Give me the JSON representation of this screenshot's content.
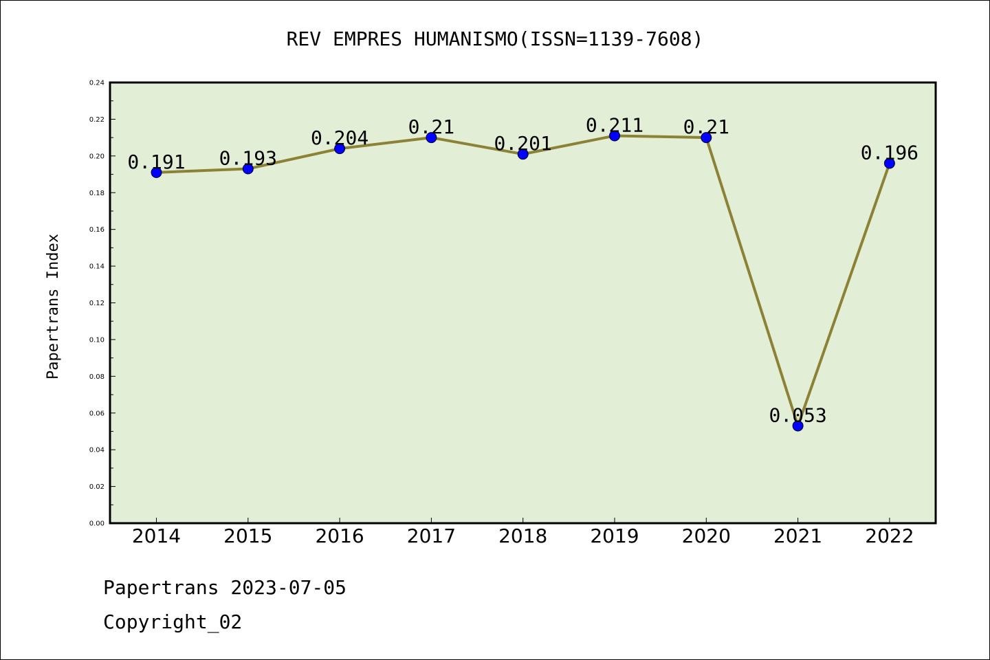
{
  "chart_data": {
    "type": "line",
    "title": "REV EMPRES HUMANISMO(ISSN=1139-7608)",
    "xlabel": "",
    "ylabel": "Papertrans Index",
    "categories": [
      "2014",
      "2015",
      "2016",
      "2017",
      "2018",
      "2019",
      "2020",
      "2021",
      "2022"
    ],
    "series": [
      {
        "values": [
          0.191,
          0.193,
          0.204,
          0.21,
          0.201,
          0.211,
          0.21,
          0.053,
          0.196
        ]
      }
    ],
    "data_labels": [
      "0.191",
      "0.193",
      "0.204",
      "0.21",
      "0.201",
      "0.211",
      "0.21",
      "0.053",
      "0.196"
    ],
    "ylim": [
      0,
      0.24
    ],
    "yticks": [
      "0.00",
      "0.02",
      "0.04",
      "0.06",
      "0.08",
      "0.10",
      "0.12",
      "0.14",
      "0.16",
      "0.18",
      "0.20",
      "0.22",
      "0.24"
    ],
    "grid": false,
    "colors": {
      "plot_bg": "#e2efd6",
      "line": "#8b8236",
      "marker": "#0000ff"
    }
  },
  "footer": {
    "line1": "Papertrans 2023-07-05",
    "line2": "Copyright_02"
  }
}
